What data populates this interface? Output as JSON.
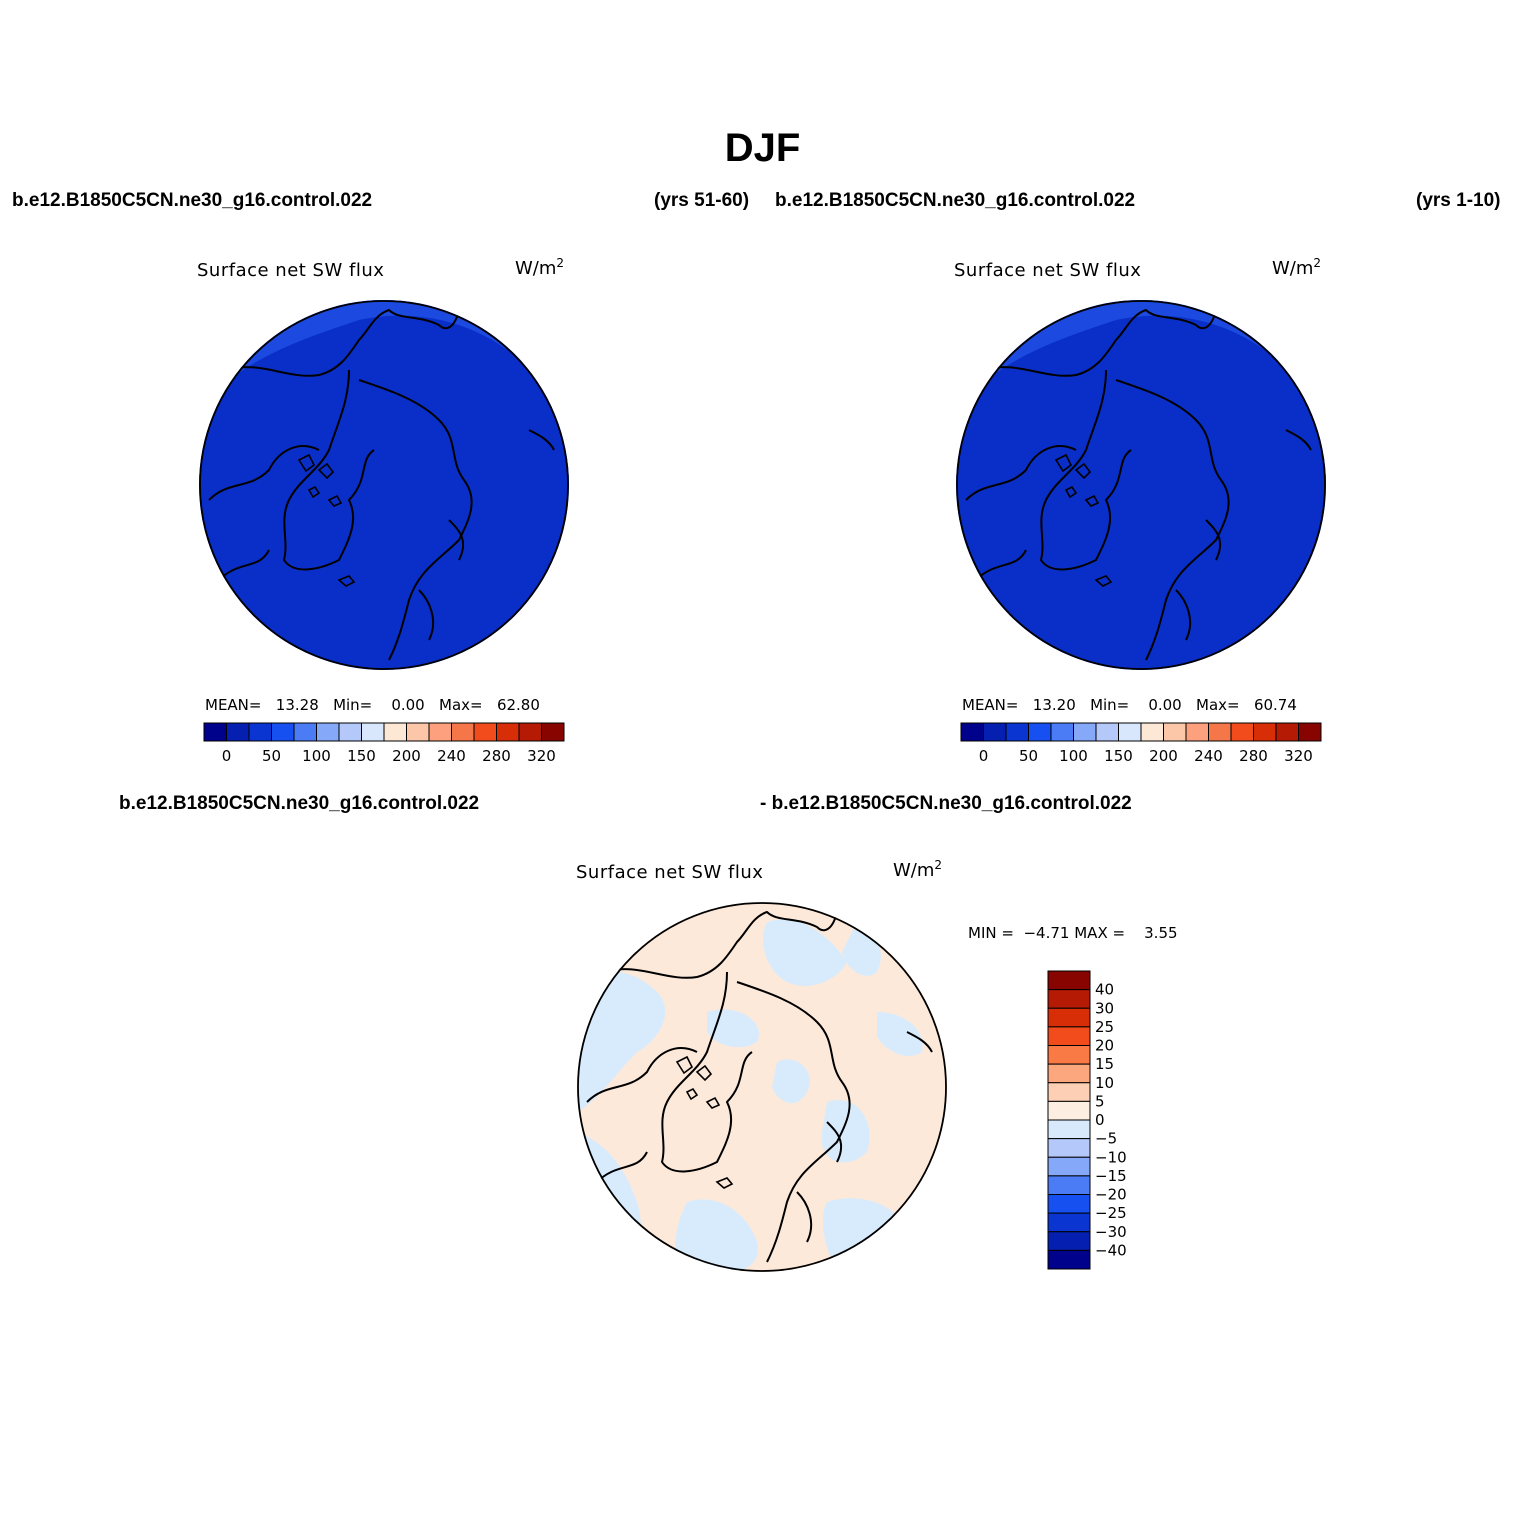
{
  "figure_title": "DJF",
  "colors": {
    "panel_fill_dark": "#0a2fc8",
    "panel_fill_light": "#1c4ae0",
    "diff_fill_neg": "#d8ebfc",
    "diff_fill_pos": "#fde9da",
    "coast": "#000000"
  },
  "chart_data": [
    {
      "type": "heatmap",
      "projection": "north-polar-stereographic",
      "case_label": "b.e12.B1850C5CN.ne30_g16.control.022",
      "years_label": "(yrs 51-60)",
      "title": "Surface net SW flux",
      "units": "W/m",
      "units_sup": "2",
      "stats": {
        "mean_label": "MEAN=",
        "mean": "13.28",
        "min_label": "Min=",
        "min": "0.00",
        "max_label": "Max=",
        "max": "62.80"
      },
      "colorbar": {
        "orientation": "horizontal",
        "tick_labels": [
          "0",
          "50",
          "100",
          "150",
          "200",
          "240",
          "280",
          "320"
        ],
        "colors": [
          "#00028c",
          "#0520b0",
          "#0a35d0",
          "#1650f0",
          "#4b7cf5",
          "#85a8f8",
          "#b4c9fa",
          "#d9e7fc",
          "#fde7d5",
          "#fcc6a8",
          "#fca07e",
          "#f57648",
          "#f24c1c",
          "#d82e08",
          "#b41a04",
          "#870400"
        ]
      }
    },
    {
      "type": "heatmap",
      "projection": "north-polar-stereographic",
      "case_label": "b.e12.B1850C5CN.ne30_g16.control.022",
      "years_label": "(yrs 1-10)",
      "title": "Surface net SW flux",
      "units": "W/m",
      "units_sup": "2",
      "stats": {
        "mean_label": "MEAN=",
        "mean": "13.20",
        "min_label": "Min=",
        "min": "0.00",
        "max_label": "Max=",
        "max": "60.74"
      },
      "colorbar": {
        "orientation": "horizontal",
        "tick_labels": [
          "0",
          "50",
          "100",
          "150",
          "200",
          "240",
          "280",
          "320"
        ],
        "colors": [
          "#00028c",
          "#0520b0",
          "#0a35d0",
          "#1650f0",
          "#4b7cf5",
          "#85a8f8",
          "#b4c9fa",
          "#d9e7fc",
          "#fde7d5",
          "#fcc6a8",
          "#fca07e",
          "#f57648",
          "#f24c1c",
          "#d82e08",
          "#b41a04",
          "#870400"
        ]
      }
    },
    {
      "type": "heatmap",
      "projection": "north-polar-stereographic",
      "case_label_a": "b.e12.B1850C5CN.ne30_g16.control.022",
      "case_label_b": "- b.e12.B1850C5CN.ne30_g16.control.022",
      "title": "Surface net SW flux",
      "units": "W/m",
      "units_sup": "2",
      "stats": {
        "min_label": "MIN =",
        "min": "-4.71",
        "max_label": "MAX =",
        "max": "3.55"
      },
      "colorbar": {
        "orientation": "vertical",
        "tick_labels": [
          "40",
          "30",
          "25",
          "20",
          "15",
          "10",
          "5",
          "0",
          "-5",
          "-10",
          "-15",
          "-20",
          "-25",
          "-30",
          "-40"
        ],
        "colors": [
          "#870400",
          "#b41a04",
          "#d82e08",
          "#f24c1c",
          "#fa7a45",
          "#fca77e",
          "#fdd0b5",
          "#fdeee2",
          "#d9e9fc",
          "#b4c9fa",
          "#85a8f8",
          "#4b7cf5",
          "#1650f0",
          "#0a35d0",
          "#0520b0",
          "#00028c"
        ]
      }
    }
  ]
}
